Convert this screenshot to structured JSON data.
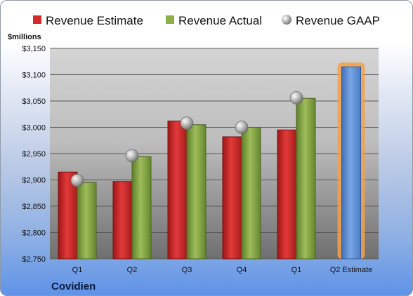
{
  "chart_data": {
    "type": "bar",
    "company": "Covidien",
    "ylabel": "$millions",
    "ylim": [
      2750,
      3150
    ],
    "ytick_step": 50,
    "ytick_labels": [
      "$2,750",
      "$2,800",
      "$2,850",
      "$2,900",
      "$2,950",
      "$3,000",
      "$3,050",
      "$3,100",
      "$3,150"
    ],
    "categories": [
      "Q1",
      "Q2",
      "Q3",
      "Q4",
      "Q1",
      "Q2 Estimate"
    ],
    "grid": true,
    "legend_position": "top",
    "series": [
      {
        "name": "Revenue Estimate",
        "kind": "bar",
        "color": "#d42a2a",
        "values": [
          2915,
          2897,
          3012,
          2982,
          2995,
          3115
        ],
        "highlight_last": true,
        "highlight_color": "#5b8fd6",
        "glow_color": "#f5a04a"
      },
      {
        "name": "Revenue Actual",
        "kind": "bar",
        "color": "#8db04a",
        "values": [
          2895,
          2944,
          3005,
          3000,
          3055,
          null
        ]
      },
      {
        "name": "Revenue GAAP",
        "kind": "marker",
        "color": "#b0b0b0",
        "values": [
          2899,
          2946,
          3008,
          3000,
          3056,
          null
        ]
      }
    ]
  }
}
